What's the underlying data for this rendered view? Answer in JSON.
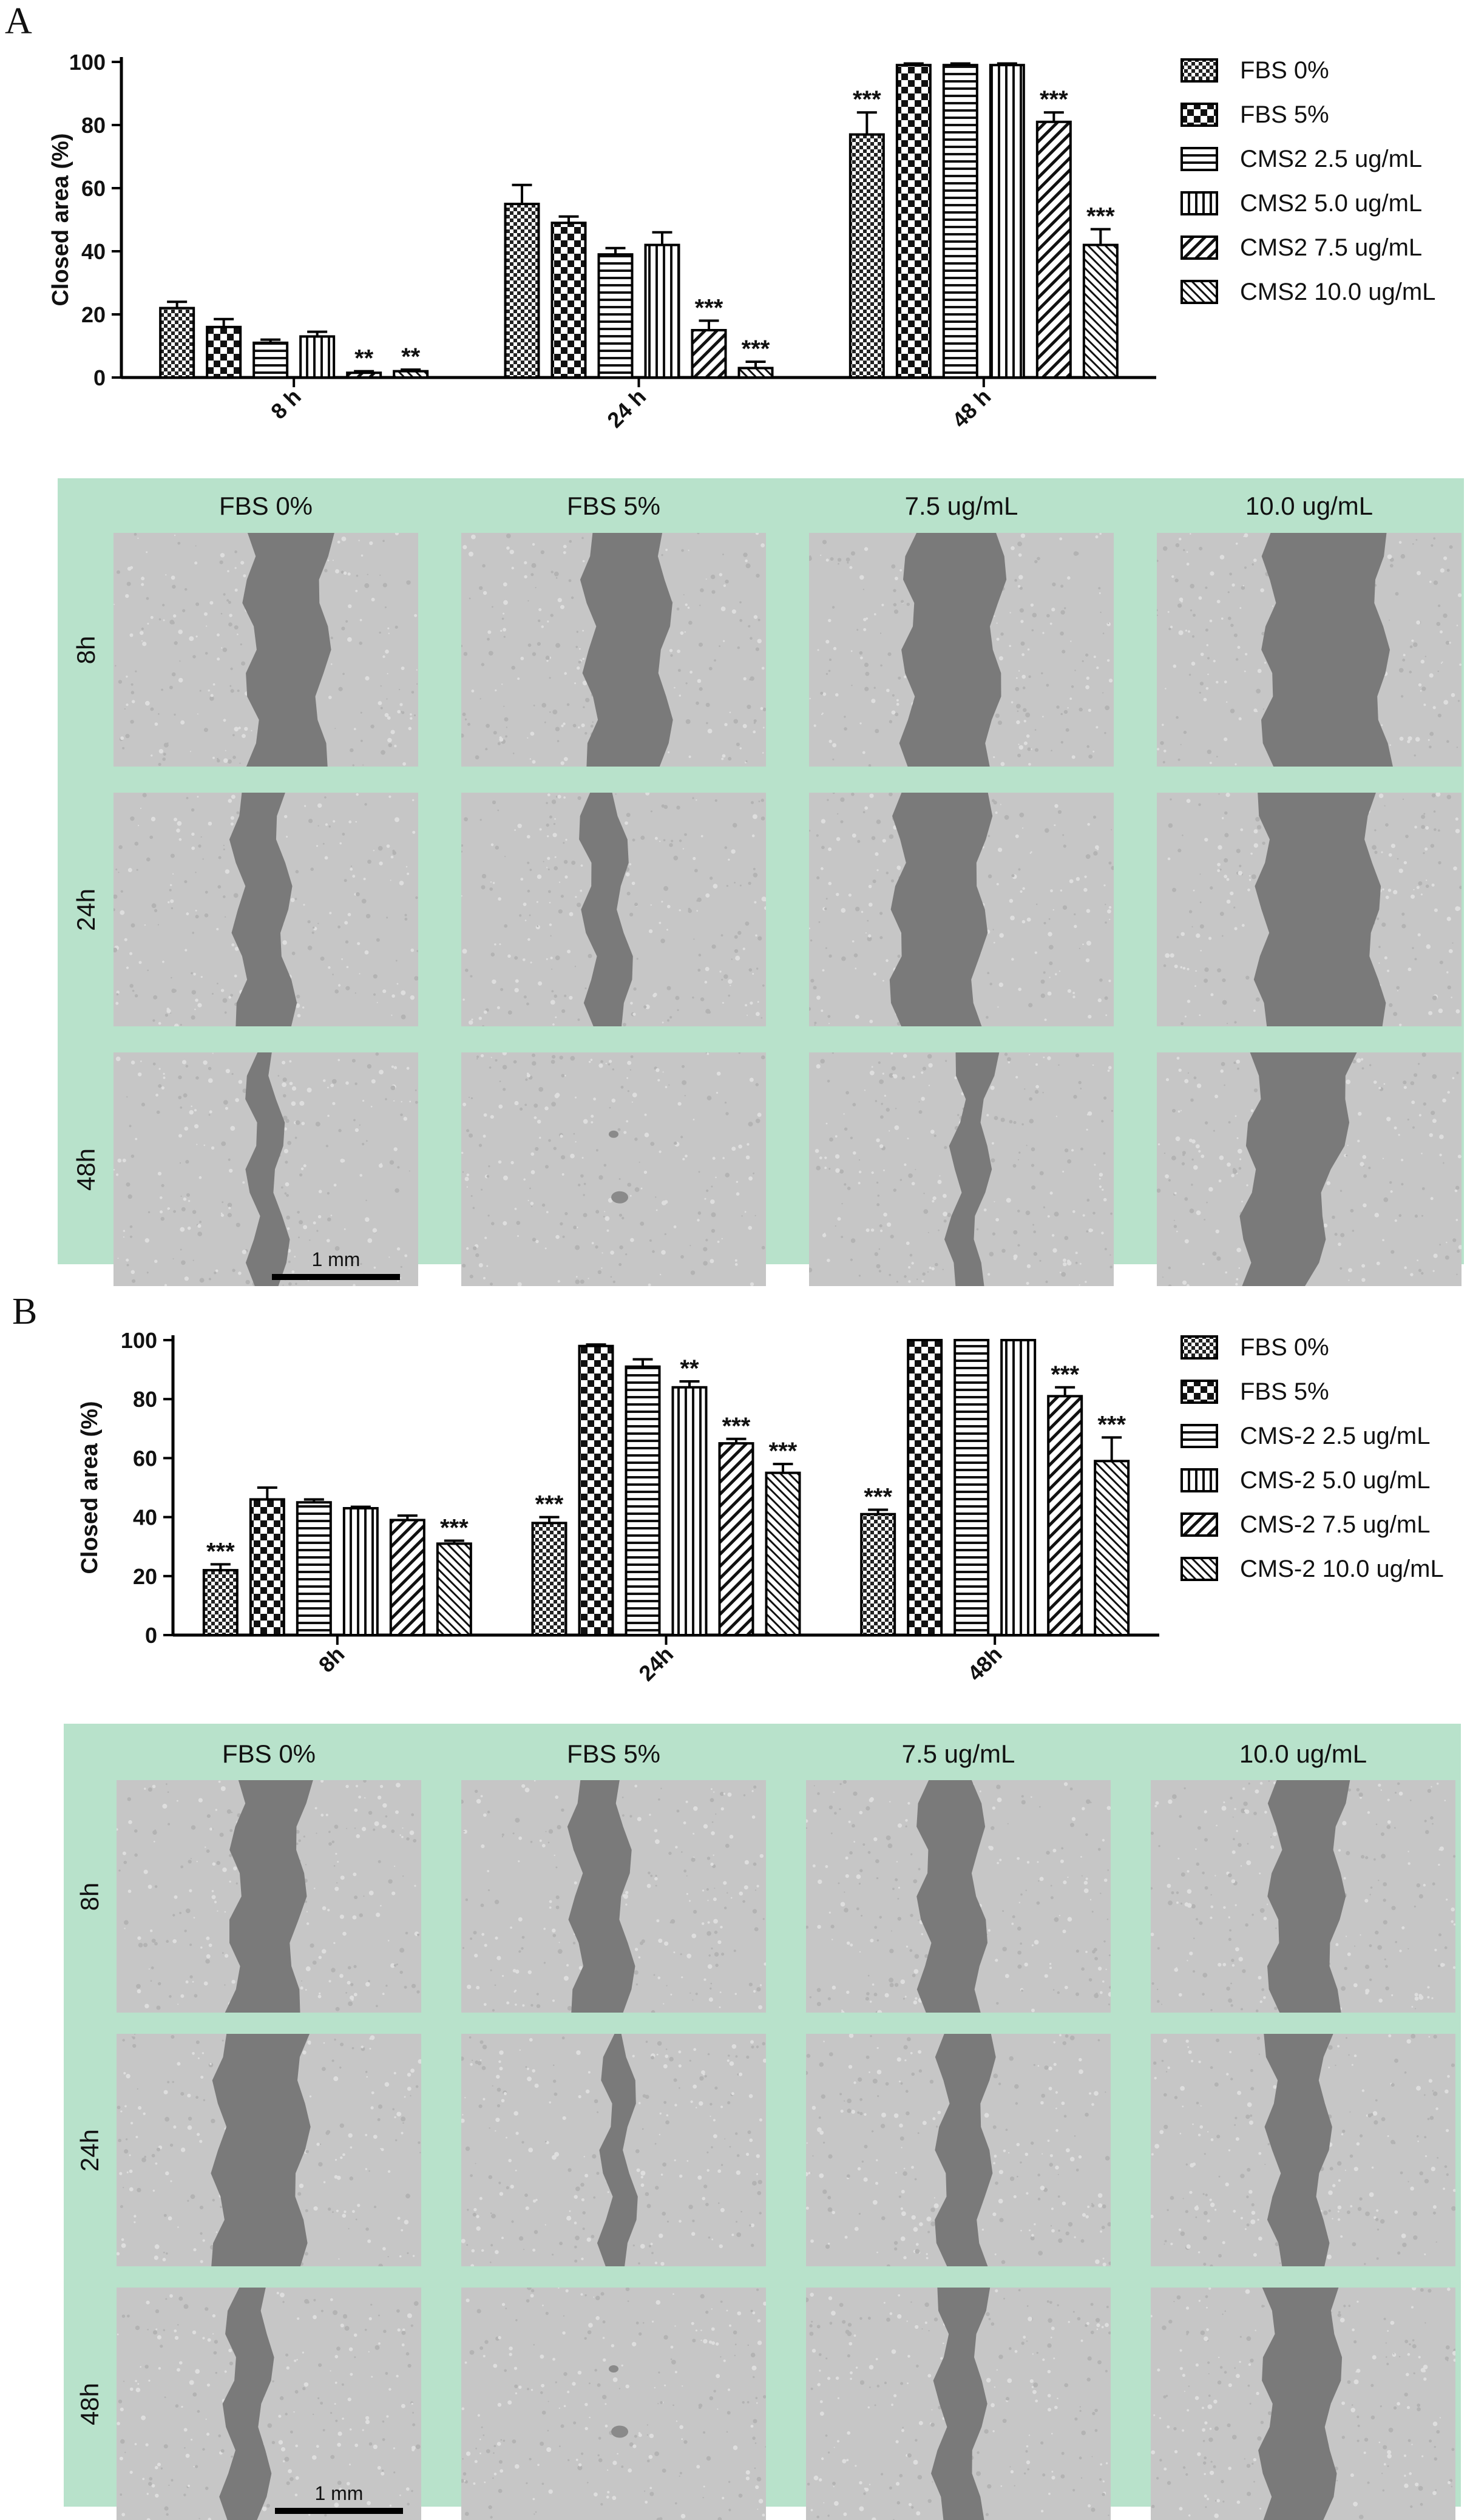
{
  "patterns": {
    "FBS 0%": "checker_dense",
    "FBS 5%": "checker_big",
    "CMS 2.5": "horizontal",
    "CMS 5.0": "vertical",
    "CMS 7.5": "diag_up",
    "CMS 10.0": "diag_up_fine"
  },
  "chart_data": [
    {
      "panel": "A",
      "type": "bar",
      "ylabel": "Closed area (%)",
      "xlabel": "",
      "ylim": [
        0,
        100
      ],
      "yticks": [
        0,
        20,
        40,
        60,
        80,
        100
      ],
      "categories": [
        "8 h",
        "24 h",
        "48 h"
      ],
      "series": [
        {
          "name": "FBS 0%",
          "values": [
            22,
            55,
            77
          ],
          "errors": [
            2,
            6,
            7
          ],
          "sig": [
            "",
            "",
            "***"
          ]
        },
        {
          "name": "FBS 5%",
          "values": [
            16,
            49,
            99
          ],
          "errors": [
            2.5,
            2,
            0.5
          ],
          "sig": [
            "",
            "",
            ""
          ]
        },
        {
          "name": "CMS2 2.5 ug/mL",
          "values": [
            11,
            39,
            99
          ],
          "errors": [
            1,
            2,
            0.5
          ],
          "sig": [
            "",
            "",
            ""
          ]
        },
        {
          "name": "CMS2 5.0 ug/mL",
          "values": [
            13,
            42,
            99
          ],
          "errors": [
            1.5,
            4,
            0.5
          ],
          "sig": [
            "",
            "",
            ""
          ]
        },
        {
          "name": "CMS2 7.5 ug/mL",
          "values": [
            1.5,
            15,
            81
          ],
          "errors": [
            0.5,
            3,
            3
          ],
          "sig": [
            "**",
            "***",
            "***"
          ]
        },
        {
          "name": "CMS2 10.0 ug/mL",
          "values": [
            2,
            3,
            42
          ],
          "errors": [
            0.5,
            2,
            5
          ],
          "sig": [
            "**",
            "***",
            "***"
          ]
        }
      ],
      "grid": false,
      "legend": "right"
    },
    {
      "panel": "B",
      "type": "bar",
      "ylabel": "Closed area (%)",
      "xlabel": "",
      "ylim": [
        0,
        100
      ],
      "yticks": [
        0,
        20,
        40,
        60,
        80,
        100
      ],
      "categories": [
        "8h",
        "24h",
        "48h"
      ],
      "series": [
        {
          "name": "FBS 0%",
          "values": [
            22,
            38,
            41
          ],
          "errors": [
            2,
            2,
            1.5
          ],
          "sig": [
            "***",
            "***",
            "***"
          ]
        },
        {
          "name": "FBS 5%",
          "values": [
            46,
            98,
            100
          ],
          "errors": [
            4,
            0.5,
            0
          ],
          "sig": [
            "",
            "",
            ""
          ]
        },
        {
          "name": "CMS-2 2.5 ug/mL",
          "values": [
            45,
            91,
            100
          ],
          "errors": [
            1,
            2.5,
            0
          ],
          "sig": [
            "",
            "",
            ""
          ]
        },
        {
          "name": "CMS-2 5.0 ug/mL",
          "values": [
            43,
            84,
            100
          ],
          "errors": [
            0.5,
            2,
            0
          ],
          "sig": [
            "",
            "**",
            ""
          ]
        },
        {
          "name": "CMS-2 7.5 ug/mL",
          "values": [
            39,
            65,
            81
          ],
          "errors": [
            1.5,
            1.5,
            3
          ],
          "sig": [
            "",
            "***",
            "***"
          ]
        },
        {
          "name": "CMS-2 10.0 ug/mL",
          "values": [
            31,
            55,
            59
          ],
          "errors": [
            1,
            3,
            8
          ],
          "sig": [
            "***",
            "***",
            "***"
          ]
        }
      ],
      "grid": false,
      "legend": "right"
    }
  ],
  "panels": {
    "A": {
      "letter": "A",
      "columns": [
        "FBS 0%",
        "FBS 5%",
        "7.5 ug/mL",
        "10.0 ug/mL"
      ],
      "rows": [
        "8h",
        "24h",
        "48h"
      ],
      "scale_label": "1 mm",
      "panel_bg": "#b8e2cb"
    },
    "B": {
      "letter": "B",
      "columns": [
        "FBS 0%",
        "FBS 5%",
        "7.5 ug/mL",
        "10.0 ug/mL"
      ],
      "rows": [
        "8h",
        "24h",
        "48h"
      ],
      "scale_label": "1 mm",
      "panel_bg": "#b8e2cb"
    }
  }
}
